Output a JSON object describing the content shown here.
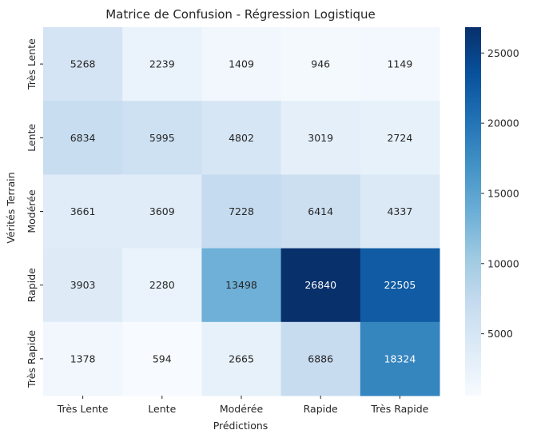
{
  "chart_data": {
    "type": "heatmap",
    "title": "Matrice de Confusion - Régression Logistique",
    "xlabel": "Prédictions",
    "ylabel": "Vérités Terrain",
    "x_categories": [
      "Très Lente",
      "Lente",
      "Modérée",
      "Rapide",
      "Très Rapide"
    ],
    "y_categories": [
      "Très Lente",
      "Lente",
      "Modérée",
      "Rapide",
      "Très Rapide"
    ],
    "values": [
      [
        5268,
        2239,
        1409,
        946,
        1149
      ],
      [
        6834,
        5995,
        4802,
        3019,
        2724
      ],
      [
        3661,
        3609,
        7228,
        6414,
        4337
      ],
      [
        3903,
        2280,
        13498,
        26840,
        22505
      ],
      [
        1378,
        594,
        2665,
        6886,
        18324
      ]
    ],
    "colormap": "Blues",
    "color_range": [
      594,
      26840
    ],
    "colorbar_ticks": [
      5000,
      10000,
      15000,
      20000,
      25000
    ],
    "colorbar_tick_labels": [
      "5000",
      "10000",
      "15000",
      "20000",
      "25000"
    ]
  }
}
